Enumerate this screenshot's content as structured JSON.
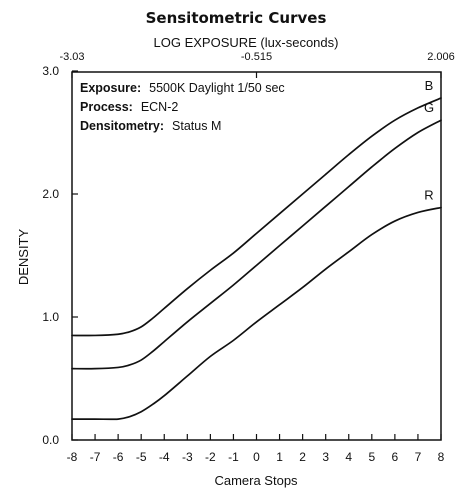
{
  "chart_data": {
    "type": "line",
    "title": "Sensitometric Curves",
    "xlabel": "Camera Stops",
    "ylabel": "DENSITY",
    "xlim": [
      -8,
      8
    ],
    "ylim": [
      0.0,
      3.0
    ],
    "xticks": [
      -8,
      -7,
      -6,
      -5,
      -4,
      -3,
      -2,
      -1,
      0,
      1,
      2,
      3,
      4,
      5,
      6,
      7,
      8
    ],
    "yticks": [
      "0.0",
      "1.0",
      "2.0",
      "3.0"
    ],
    "top_axis": {
      "label": "LOG EXPOSURE (lux-seconds)",
      "ticks": [
        {
          "stop": -8,
          "label": "-3.03"
        },
        {
          "stop": 0,
          "label": "-0.515"
        },
        {
          "stop": 8,
          "label": "2.006"
        }
      ]
    },
    "annotations": [
      {
        "key": "Exposure:",
        "value": "5500K Daylight 1/50 sec"
      },
      {
        "key": "Process:",
        "value": "ECN-2"
      },
      {
        "key": "Densitometry:",
        "value": "Status M"
      }
    ],
    "series": [
      {
        "name": "B",
        "color": "#111111",
        "x": [
          -8,
          -7,
          -6,
          -5.5,
          -5,
          -4.5,
          -4,
          -3,
          -2,
          -1,
          0,
          1,
          2,
          3,
          4,
          5,
          6,
          7,
          8
        ],
        "y": [
          0.85,
          0.85,
          0.86,
          0.88,
          0.92,
          0.99,
          1.07,
          1.23,
          1.38,
          1.52,
          1.68,
          1.84,
          2.0,
          2.16,
          2.32,
          2.47,
          2.6,
          2.7,
          2.78
        ]
      },
      {
        "name": "G",
        "color": "#111111",
        "x": [
          -8,
          -7,
          -6,
          -5.5,
          -5,
          -4.5,
          -4,
          -3,
          -2,
          -1,
          0,
          1,
          2,
          3,
          4,
          5,
          6,
          7,
          8
        ],
        "y": [
          0.58,
          0.58,
          0.59,
          0.61,
          0.65,
          0.72,
          0.8,
          0.96,
          1.11,
          1.26,
          1.42,
          1.58,
          1.74,
          1.9,
          2.06,
          2.22,
          2.37,
          2.5,
          2.6
        ]
      },
      {
        "name": "R",
        "color": "#111111",
        "x": [
          -8,
          -7,
          -6,
          -5.5,
          -5,
          -4.5,
          -4,
          -3,
          -2,
          -1,
          0,
          1,
          2,
          3,
          4,
          5,
          6,
          7,
          8
        ],
        "y": [
          0.17,
          0.17,
          0.17,
          0.19,
          0.23,
          0.29,
          0.36,
          0.52,
          0.68,
          0.81,
          0.96,
          1.1,
          1.24,
          1.39,
          1.53,
          1.67,
          1.78,
          1.85,
          1.89
        ]
      }
    ]
  }
}
